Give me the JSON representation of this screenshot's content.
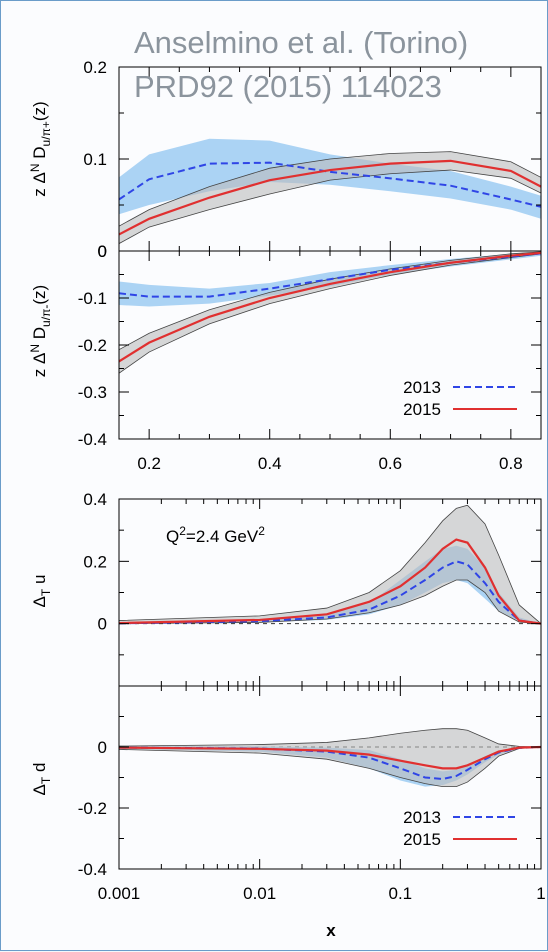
{
  "annotation": {
    "line1": "Anselmino et al.  (Torino)",
    "line2": "PRD92 (2015) 114023"
  },
  "colors": {
    "y2013": "#2f45e6",
    "y2015": "#e03030",
    "band2013": "#9ccbf2",
    "band2015": "#bdbdbd"
  },
  "chart_data": [
    {
      "type": "line",
      "id": "collins_fav",
      "ylabel": "z ΔN Du/π+(z)",
      "ylim": [
        0,
        0.2
      ],
      "xlim": [
        0.15,
        0.85
      ],
      "yticks": [
        "0.2",
        "0.1",
        "0"
      ],
      "x": [
        0.15,
        0.2,
        0.3,
        0.4,
        0.5,
        0.6,
        0.7,
        0.8,
        0.85
      ],
      "series": [
        {
          "name": "2013",
          "values": [
            0.056,
            0.078,
            0.095,
            0.096,
            0.086,
            0.079,
            0.071,
            0.056,
            0.048
          ],
          "band": [
            [
              0.04,
              0.08
            ],
            [
              0.05,
              0.105
            ],
            [
              0.065,
              0.122
            ],
            [
              0.075,
              0.12
            ],
            [
              0.072,
              0.105
            ],
            [
              0.065,
              0.095
            ],
            [
              0.057,
              0.087
            ],
            [
              0.045,
              0.07
            ],
            [
              0.035,
              0.06
            ]
          ]
        },
        {
          "name": "2015",
          "values": [
            0.018,
            0.035,
            0.058,
            0.077,
            0.088,
            0.095,
            0.098,
            0.087,
            0.07
          ],
          "band": [
            [
              0.008,
              0.027
            ],
            [
              0.026,
              0.045
            ],
            [
              0.045,
              0.07
            ],
            [
              0.062,
              0.09
            ],
            [
              0.077,
              0.1
            ],
            [
              0.084,
              0.106
            ],
            [
              0.088,
              0.108
            ],
            [
              0.079,
              0.097
            ],
            [
              0.063,
              0.08
            ]
          ]
        }
      ]
    },
    {
      "type": "line",
      "id": "collins_unf",
      "ylabel": "z ΔN Du/π-(z)",
      "ylim": [
        -0.4,
        0
      ],
      "xlim": [
        0.15,
        0.85
      ],
      "yticks": [
        "0",
        "-0.1",
        "-0.2",
        "-0.3",
        "-0.4"
      ],
      "xticks": [
        "0.2",
        "0.4",
        "0.6",
        "0.8"
      ],
      "legend": [
        "2013",
        "2015"
      ],
      "x": [
        0.15,
        0.2,
        0.3,
        0.4,
        0.5,
        0.6,
        0.7,
        0.8,
        0.85
      ],
      "series": [
        {
          "name": "2013",
          "values": [
            -0.09,
            -0.097,
            -0.097,
            -0.08,
            -0.06,
            -0.04,
            -0.025,
            -0.012,
            -0.005
          ],
          "band": [
            [
              -0.115,
              -0.065
            ],
            [
              -0.118,
              -0.072
            ],
            [
              -0.112,
              -0.08
            ],
            [
              -0.095,
              -0.068
            ],
            [
              -0.075,
              -0.045
            ],
            [
              -0.05,
              -0.03
            ],
            [
              -0.033,
              -0.017
            ],
            [
              -0.018,
              -0.006
            ],
            [
              -0.01,
              -0.002
            ]
          ]
        },
        {
          "name": "2015",
          "values": [
            -0.235,
            -0.195,
            -0.14,
            -0.1,
            -0.07,
            -0.045,
            -0.025,
            -0.01,
            -0.004
          ],
          "band": [
            [
              -0.26,
              -0.21
            ],
            [
              -0.215,
              -0.175
            ],
            [
              -0.155,
              -0.125
            ],
            [
              -0.112,
              -0.088
            ],
            [
              -0.08,
              -0.06
            ],
            [
              -0.052,
              -0.038
            ],
            [
              -0.03,
              -0.02
            ],
            [
              -0.014,
              -0.006
            ],
            [
              -0.006,
              -0.002
            ]
          ]
        }
      ]
    },
    {
      "type": "line",
      "id": "transversity_u",
      "xscale": "log",
      "ylabel": "ΔT u",
      "annotation": "Q2=2.4 GeV2",
      "ylim": [
        -0.2,
        0.4
      ],
      "xlim": [
        0.001,
        1
      ],
      "yticks": [
        "0.4",
        "0.2",
        "0"
      ],
      "x": [
        0.001,
        0.01,
        0.03,
        0.06,
        0.1,
        0.15,
        0.2,
        0.25,
        0.3,
        0.4,
        0.5,
        0.7,
        1
      ],
      "series": [
        {
          "name": "2013",
          "values": [
            0.001,
            0.008,
            0.02,
            0.045,
            0.09,
            0.14,
            0.18,
            0.2,
            0.19,
            0.13,
            0.07,
            0.01,
            0
          ],
          "band": [
            [
              0,
              0.003
            ],
            [
              0.004,
              0.012
            ],
            [
              0.012,
              0.03
            ],
            [
              0.03,
              0.065
            ],
            [
              0.06,
              0.14
            ],
            [
              0.1,
              0.2
            ],
            [
              0.13,
              0.24
            ],
            [
              0.14,
              0.25
            ],
            [
              0.13,
              0.24
            ],
            [
              0.08,
              0.18
            ],
            [
              0.04,
              0.1
            ],
            [
              0.005,
              0.02
            ],
            [
              0,
              0
            ]
          ]
        },
        {
          "name": "2015",
          "values": [
            0.002,
            0.012,
            0.03,
            0.07,
            0.12,
            0.18,
            0.24,
            0.27,
            0.26,
            0.18,
            0.09,
            0.01,
            0
          ],
          "band": [
            [
              0,
              0.01
            ],
            [
              0.004,
              0.025
            ],
            [
              0.015,
              0.05
            ],
            [
              0.035,
              0.1
            ],
            [
              0.06,
              0.17
            ],
            [
              0.09,
              0.26
            ],
            [
              0.12,
              0.33
            ],
            [
              0.14,
              0.37
            ],
            [
              0.14,
              0.38
            ],
            [
              0.1,
              0.32
            ],
            [
              0.04,
              0.22
            ],
            [
              0.005,
              0.06
            ],
            [
              0,
              0
            ]
          ]
        }
      ]
    },
    {
      "type": "line",
      "id": "transversity_d",
      "xscale": "log",
      "ylabel": "ΔT d",
      "ylim": [
        -0.4,
        0.2
      ],
      "xlim": [
        0.001,
        1
      ],
      "yticks": [
        "0",
        "-0.2",
        "-0.4"
      ],
      "xticks": [
        "0.001",
        "0.01",
        "0.1",
        "1"
      ],
      "xlabel": "x",
      "legend": [
        "2013",
        "2015"
      ],
      "x": [
        0.001,
        0.01,
        0.03,
        0.06,
        0.1,
        0.15,
        0.2,
        0.25,
        0.3,
        0.4,
        0.5,
        0.7,
        1
      ],
      "series": [
        {
          "name": "2013",
          "values": [
            -0.002,
            -0.005,
            -0.015,
            -0.035,
            -0.07,
            -0.1,
            -0.105,
            -0.095,
            -0.075,
            -0.04,
            -0.018,
            -0.003,
            0
          ],
          "band": [
            [
              -0.006,
              0.002
            ],
            [
              -0.015,
              0.002
            ],
            [
              -0.035,
              -0.002
            ],
            [
              -0.07,
              -0.01
            ],
            [
              -0.11,
              -0.04
            ],
            [
              -0.13,
              -0.07
            ],
            [
              -0.125,
              -0.08
            ],
            [
              -0.11,
              -0.075
            ],
            [
              -0.09,
              -0.06
            ],
            [
              -0.05,
              -0.03
            ],
            [
              -0.025,
              -0.012
            ],
            [
              -0.005,
              -0.001
            ],
            [
              0,
              0
            ]
          ]
        },
        {
          "name": "2015",
          "values": [
            -0.002,
            -0.006,
            -0.012,
            -0.025,
            -0.045,
            -0.06,
            -0.07,
            -0.07,
            -0.06,
            -0.035,
            -0.015,
            -0.002,
            0
          ],
          "band": [
            [
              -0.008,
              0.003
            ],
            [
              -0.02,
              0.008
            ],
            [
              -0.04,
              0.015
            ],
            [
              -0.07,
              0.03
            ],
            [
              -0.1,
              0.045
            ],
            [
              -0.12,
              0.055
            ],
            [
              -0.13,
              0.06
            ],
            [
              -0.13,
              0.06
            ],
            [
              -0.115,
              0.055
            ],
            [
              -0.07,
              0.03
            ],
            [
              -0.03,
              0.01
            ],
            [
              -0.005,
              0.002
            ],
            [
              0,
              0
            ]
          ]
        }
      ]
    }
  ]
}
